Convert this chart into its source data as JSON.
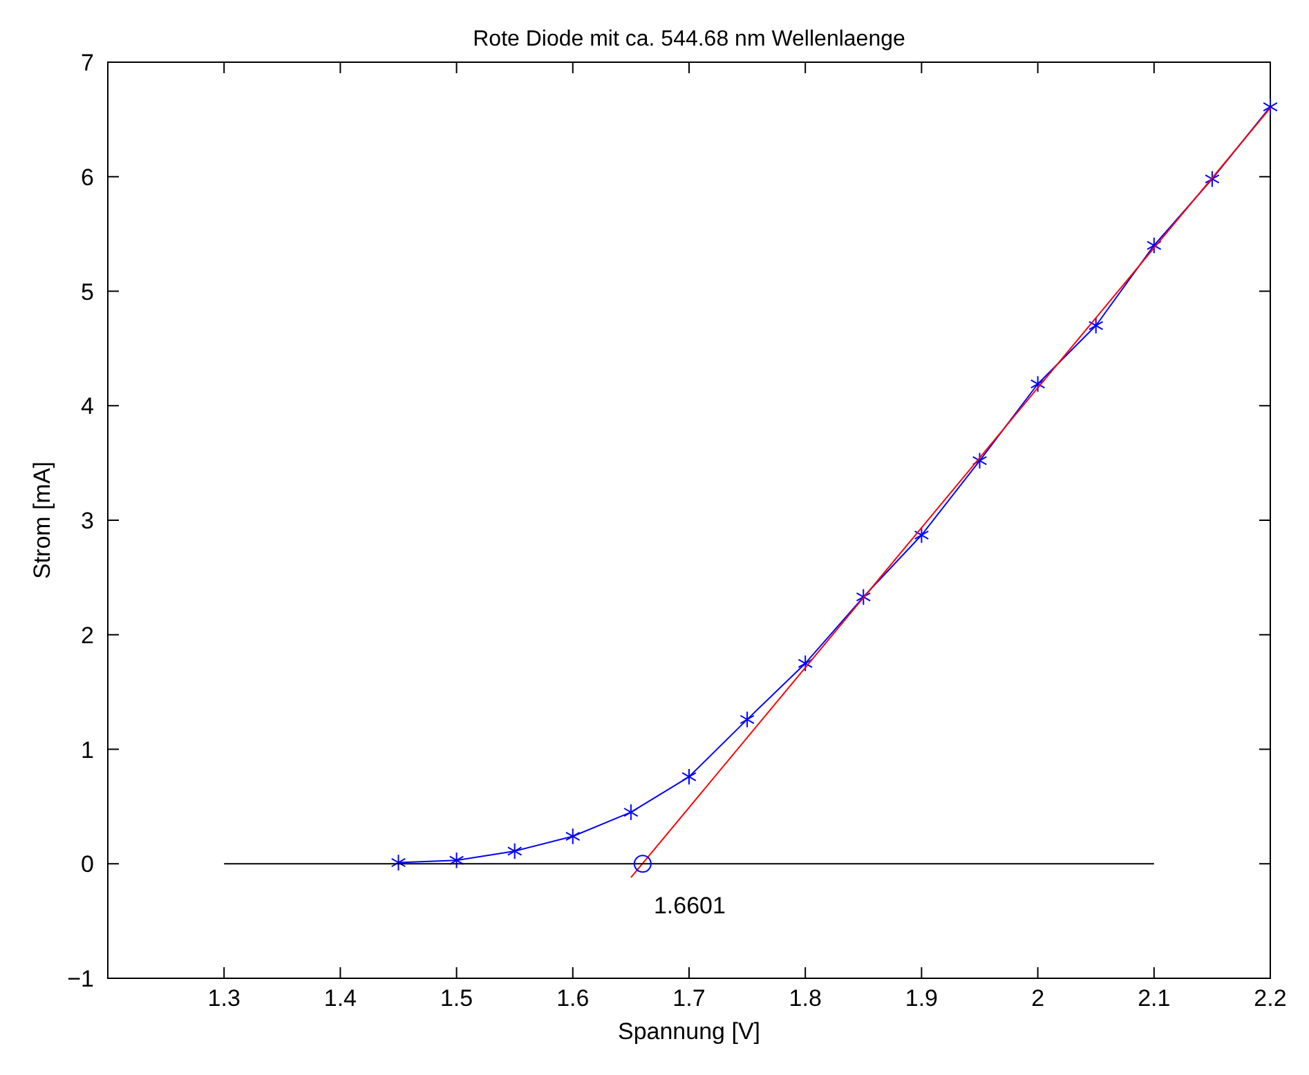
{
  "chart_data": {
    "type": "line",
    "title": "Rote Diode mit ca. 544.68 nm Wellenlaenge",
    "xlabel": "Spannung [V]",
    "ylabel": "Strom [mA]",
    "x": [
      1.45,
      1.5,
      1.55,
      1.6,
      1.65,
      1.7,
      1.75,
      1.8,
      1.85,
      1.9,
      1.95,
      2.0,
      2.05,
      2.1,
      2.15,
      2.2
    ],
    "series": [
      {
        "color": "#0000ff",
        "marker": "cross",
        "values": [
          0.01,
          0.03,
          0.11,
          0.24,
          0.45,
          0.76,
          1.26,
          1.75,
          2.33,
          2.87,
          3.52,
          4.19,
          4.7,
          5.4,
          5.98,
          6.61
        ]
      },
      {
        "type": "line",
        "color": "#ff0000",
        "marker": "none",
        "x": [
          1.65,
          2.2
        ],
        "values": [
          -0.12,
          6.6
        ]
      },
      {
        "type": "line",
        "color": "#000000",
        "marker": "none",
        "x": [
          1.3,
          2.1
        ],
        "values": [
          0,
          0
        ]
      },
      {
        "type": "scatter",
        "color": "#0000ff",
        "marker": "circle",
        "x": [
          1.6601
        ],
        "values": [
          0
        ]
      }
    ],
    "annotations": [
      {
        "text": "1.6601",
        "x": 1.6601,
        "y": 0
      }
    ],
    "xlim": [
      1.2,
      2.2
    ],
    "xticks": [
      1.3,
      1.4,
      1.5,
      1.6,
      1.7,
      1.8,
      1.9,
      2,
      2.1,
      2.2
    ],
    "ylim": [
      -1,
      7
    ],
    "yticks": [
      -1,
      0,
      1,
      2,
      3,
      4,
      5,
      6,
      7
    ],
    "grid": false
  }
}
